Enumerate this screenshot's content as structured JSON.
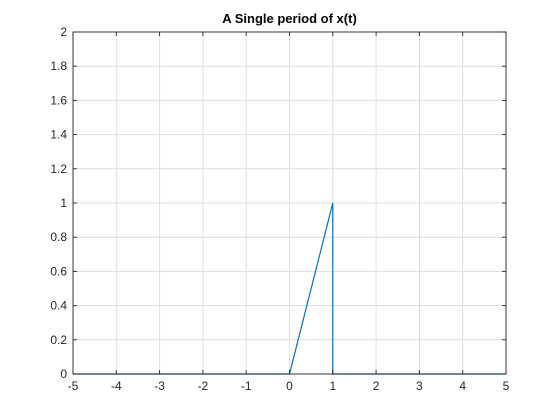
{
  "chart_data": {
    "type": "line",
    "title": "A Single period of x(t)",
    "xlabel": "",
    "ylabel": "",
    "xlim": [
      -5,
      5
    ],
    "ylim": [
      0,
      2
    ],
    "x_ticks": [
      "-5",
      "-4",
      "-3",
      "-2",
      "-1",
      "0",
      "1",
      "2",
      "3",
      "4",
      "5"
    ],
    "y_ticks": [
      "0",
      "0.2",
      "0.4",
      "0.6",
      "0.8",
      "1",
      "1.2",
      "1.4",
      "1.6",
      "1.8",
      "2"
    ],
    "grid": true,
    "series": [
      {
        "color": "#0072BD",
        "x": [
          -5,
          0,
          1,
          1,
          5
        ],
        "y": [
          0,
          0,
          1,
          0,
          0
        ]
      }
    ]
  }
}
